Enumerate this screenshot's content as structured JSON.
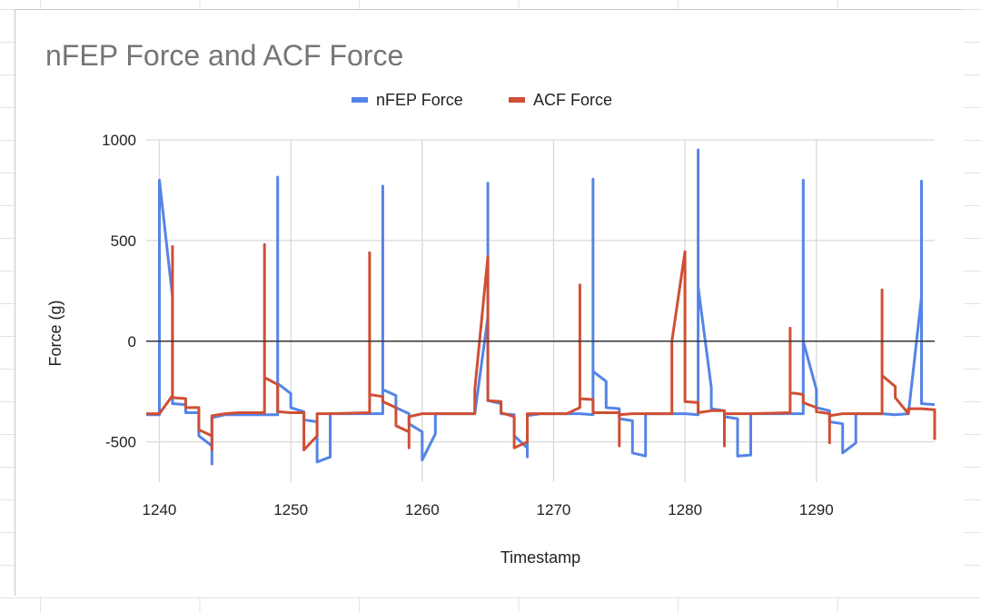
{
  "chart_data": {
    "type": "line",
    "title": "nFEP Force and ACF Force",
    "xlabel": "Timestamp",
    "ylabel": "Force (g)",
    "xlim": [
      1239,
      1299
    ],
    "ylim": [
      -700,
      1000
    ],
    "x_ticks": [
      1240,
      1250,
      1260,
      1270,
      1280,
      1290
    ],
    "y_ticks": [
      -500,
      0,
      500,
      1000
    ],
    "grid": true,
    "legend": "top-center",
    "series": [
      {
        "name": "nFEP Force",
        "color": "#5584e6",
        "points": [
          [
            1239,
            -365
          ],
          [
            1240,
            -365
          ],
          [
            1240,
            800
          ],
          [
            1241,
            220
          ],
          [
            1241,
            -310
          ],
          [
            1242,
            -315
          ],
          [
            1242,
            -355
          ],
          [
            1243,
            -355
          ],
          [
            1243,
            -470
          ],
          [
            1244,
            -520
          ],
          [
            1244,
            -610
          ],
          [
            1244,
            -380
          ],
          [
            1245,
            -365
          ],
          [
            1246,
            -365
          ],
          [
            1248,
            -365
          ],
          [
            1249,
            -365
          ],
          [
            1249,
            815
          ],
          [
            1249,
            -210
          ],
          [
            1250,
            -260
          ],
          [
            1250,
            -330
          ],
          [
            1251,
            -350
          ],
          [
            1251,
            -390
          ],
          [
            1252,
            -400
          ],
          [
            1252,
            -600
          ],
          [
            1253,
            -575
          ],
          [
            1253,
            -360
          ],
          [
            1254,
            -360
          ],
          [
            1256,
            -360
          ],
          [
            1257,
            -360
          ],
          [
            1257,
            770
          ],
          [
            1257,
            -240
          ],
          [
            1258,
            -270
          ],
          [
            1258,
            -330
          ],
          [
            1259,
            -360
          ],
          [
            1259,
            -410
          ],
          [
            1260,
            -450
          ],
          [
            1260,
            -590
          ],
          [
            1261,
            -460
          ],
          [
            1261,
            -360
          ],
          [
            1262,
            -360
          ],
          [
            1263,
            -360
          ],
          [
            1264,
            -360
          ],
          [
            1265,
            120
          ],
          [
            1265,
            785
          ],
          [
            1265,
            -295
          ],
          [
            1266,
            -310
          ],
          [
            1266,
            -360
          ],
          [
            1267,
            -365
          ],
          [
            1267,
            -470
          ],
          [
            1268,
            -530
          ],
          [
            1268,
            -575
          ],
          [
            1268,
            -370
          ],
          [
            1269,
            -360
          ],
          [
            1270,
            -360
          ],
          [
            1271,
            -360
          ],
          [
            1272,
            -360
          ],
          [
            1273,
            -365
          ],
          [
            1273,
            805
          ],
          [
            1273,
            -150
          ],
          [
            1274,
            -200
          ],
          [
            1274,
            -330
          ],
          [
            1275,
            -335
          ],
          [
            1275,
            -385
          ],
          [
            1276,
            -395
          ],
          [
            1276,
            -555
          ],
          [
            1277,
            -570
          ],
          [
            1277,
            -360
          ],
          [
            1278,
            -360
          ],
          [
            1279,
            -360
          ],
          [
            1280,
            -360
          ],
          [
            1281,
            -365
          ],
          [
            1281,
            950
          ],
          [
            1281,
            270
          ],
          [
            1282,
            -230
          ],
          [
            1282,
            -335
          ],
          [
            1283,
            -345
          ],
          [
            1283,
            -375
          ],
          [
            1284,
            -385
          ],
          [
            1284,
            -570
          ],
          [
            1285,
            -565
          ],
          [
            1285,
            -360
          ],
          [
            1286,
            -360
          ],
          [
            1287,
            -360
          ],
          [
            1288,
            -360
          ],
          [
            1289,
            -360
          ],
          [
            1289,
            800
          ],
          [
            1289,
            0
          ],
          [
            1290,
            -240
          ],
          [
            1290,
            -330
          ],
          [
            1291,
            -345
          ],
          [
            1291,
            -400
          ],
          [
            1292,
            -410
          ],
          [
            1292,
            -555
          ],
          [
            1293,
            -505
          ],
          [
            1293,
            -360
          ],
          [
            1294,
            -360
          ],
          [
            1295,
            -360
          ],
          [
            1296,
            -365
          ],
          [
            1297,
            -360
          ],
          [
            1298,
            220
          ],
          [
            1298,
            795
          ],
          [
            1298,
            -310
          ],
          [
            1299,
            -315
          ]
        ]
      },
      {
        "name": "ACF Force",
        "color": "#cf4f34",
        "points": [
          [
            1239,
            -360
          ],
          [
            1240,
            -360
          ],
          [
            1241,
            -270
          ],
          [
            1241,
            470
          ],
          [
            1241,
            -280
          ],
          [
            1242,
            -285
          ],
          [
            1242,
            -330
          ],
          [
            1243,
            -330
          ],
          [
            1243,
            -440
          ],
          [
            1244,
            -470
          ],
          [
            1244,
            -540
          ],
          [
            1244,
            -370
          ],
          [
            1245,
            -360
          ],
          [
            1246,
            -355
          ],
          [
            1248,
            -355
          ],
          [
            1248,
            480
          ],
          [
            1248,
            -180
          ],
          [
            1249,
            -215
          ],
          [
            1249,
            -350
          ],
          [
            1250,
            -355
          ],
          [
            1251,
            -355
          ],
          [
            1251,
            -540
          ],
          [
            1252,
            -470
          ],
          [
            1252,
            -360
          ],
          [
            1253,
            -360
          ],
          [
            1256,
            -355
          ],
          [
            1256,
            440
          ],
          [
            1256,
            -265
          ],
          [
            1257,
            -275
          ],
          [
            1257,
            -300
          ],
          [
            1258,
            -330
          ],
          [
            1258,
            -420
          ],
          [
            1259,
            -450
          ],
          [
            1259,
            -530
          ],
          [
            1259,
            -375
          ],
          [
            1260,
            -360
          ],
          [
            1261,
            -360
          ],
          [
            1264,
            -360
          ],
          [
            1264,
            -240
          ],
          [
            1265,
            420
          ],
          [
            1265,
            -295
          ],
          [
            1266,
            -300
          ],
          [
            1266,
            -355
          ],
          [
            1267,
            -375
          ],
          [
            1267,
            -530
          ],
          [
            1268,
            -500
          ],
          [
            1268,
            -360
          ],
          [
            1269,
            -360
          ],
          [
            1271,
            -360
          ],
          [
            1272,
            -330
          ],
          [
            1272,
            280
          ],
          [
            1272,
            -285
          ],
          [
            1273,
            -290
          ],
          [
            1273,
            -355
          ],
          [
            1275,
            -355
          ],
          [
            1275,
            -520
          ],
          [
            1275,
            -365
          ],
          [
            1276,
            -360
          ],
          [
            1279,
            -360
          ],
          [
            1279,
            0
          ],
          [
            1280,
            445
          ],
          [
            1280,
            -300
          ],
          [
            1281,
            -305
          ],
          [
            1281,
            -355
          ],
          [
            1282,
            -345
          ],
          [
            1283,
            -345
          ],
          [
            1283,
            -520
          ],
          [
            1283,
            -360
          ],
          [
            1285,
            -360
          ],
          [
            1288,
            -355
          ],
          [
            1288,
            65
          ],
          [
            1288,
            -255
          ],
          [
            1289,
            -265
          ],
          [
            1289,
            -305
          ],
          [
            1290,
            -330
          ],
          [
            1290,
            -350
          ],
          [
            1291,
            -360
          ],
          [
            1291,
            -505
          ],
          [
            1291,
            -370
          ],
          [
            1292,
            -360
          ],
          [
            1294,
            -360
          ],
          [
            1295,
            -360
          ],
          [
            1295,
            255
          ],
          [
            1295,
            -170
          ],
          [
            1296,
            -225
          ],
          [
            1296,
            -280
          ],
          [
            1297,
            -360
          ],
          [
            1297,
            -335
          ],
          [
            1298,
            -335
          ],
          [
            1299,
            -340
          ],
          [
            1299,
            -490
          ]
        ]
      }
    ]
  }
}
